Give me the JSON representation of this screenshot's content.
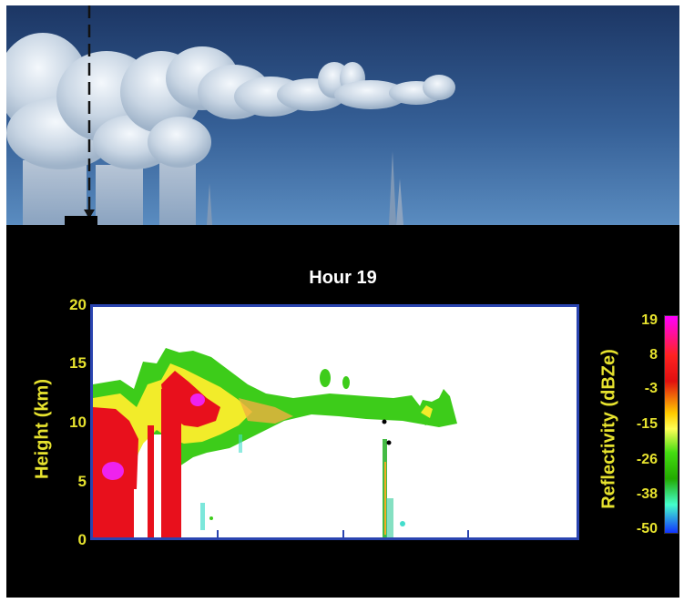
{
  "chart_data": {
    "type": "heatmap",
    "title": "Hour 19",
    "ylabel": "Height (km)",
    "yticks": [
      0,
      5,
      10,
      15,
      20
    ],
    "ylim": [
      0,
      20
    ],
    "colorbar": {
      "label": "Reflectivity (dBZe)",
      "ticks": [
        19,
        8,
        -3,
        -15,
        -26,
        -38,
        -50
      ],
      "range": [
        -50,
        19
      ]
    }
  }
}
